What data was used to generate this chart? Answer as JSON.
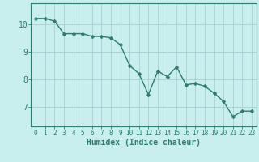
{
  "x": [
    0,
    1,
    2,
    3,
    4,
    5,
    6,
    7,
    8,
    9,
    10,
    11,
    12,
    13,
    14,
    15,
    16,
    17,
    18,
    19,
    20,
    21,
    22,
    23
  ],
  "y": [
    10.2,
    10.2,
    10.1,
    9.65,
    9.65,
    9.65,
    9.55,
    9.55,
    9.5,
    9.25,
    8.5,
    8.2,
    7.45,
    8.3,
    8.1,
    8.45,
    7.8,
    7.85,
    7.75,
    7.5,
    7.2,
    6.65,
    6.85,
    6.85
  ],
  "line_color": "#2d7d6e",
  "marker": "D",
  "markersize": 2.5,
  "linewidth": 1.0,
  "background_color": "#c8eeee",
  "grid_color": "#a8d0d0",
  "xlabel": "Humidex (Indice chaleur)",
  "xlabel_fontsize": 7,
  "ylabel_ticks": [
    7,
    8,
    9,
    10
  ],
  "xlim": [
    -0.5,
    23.5
  ],
  "ylim": [
    6.3,
    10.75
  ],
  "ytick_fontsize": 7,
  "xtick_fontsize": 5.5
}
